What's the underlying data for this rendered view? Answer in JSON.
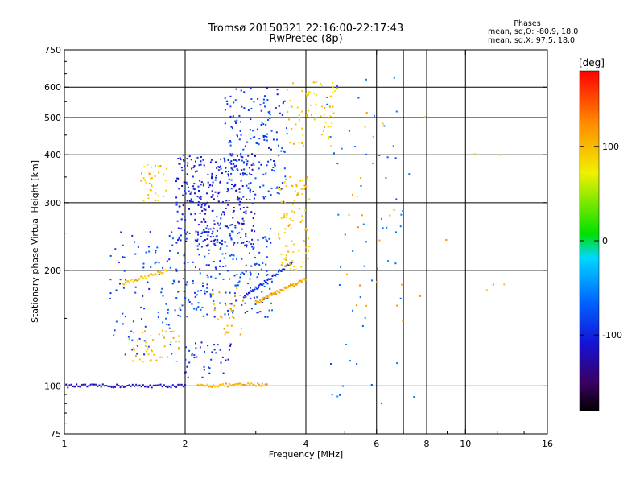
{
  "chart_data": {
    "type": "scatter",
    "title": "Tromsø 20150321 22:16:00-22:17:43",
    "subtitle": "RwPretec (8p)",
    "xlabel": "Frequency [MHz]",
    "ylabel": "Stationary phase Virtual Height [km]",
    "x_scale": "log",
    "y_scale": "log",
    "xlim": [
      1,
      16
    ],
    "ylim": [
      75,
      750
    ],
    "x_ticks": [
      "1",
      "2",
      "4",
      "6",
      "8",
      "10",
      "16"
    ],
    "x_tick_values": [
      1,
      2,
      4,
      6,
      8,
      10,
      16
    ],
    "x_grid": [
      2,
      4,
      6,
      7,
      8,
      10
    ],
    "y_ticks": [
      "75",
      "100",
      "200",
      "300",
      "400",
      "500",
      "600",
      "750"
    ],
    "y_tick_values": [
      75,
      100,
      200,
      300,
      400,
      500,
      600,
      750
    ],
    "grid": true,
    "colorbar": {
      "label": "[deg]",
      "ticks": [
        "100",
        "0",
        "-100"
      ],
      "tick_values": [
        100,
        0,
        -100
      ],
      "range": [
        -180,
        180
      ]
    },
    "stats": {
      "heading": "Phases",
      "line1": "mean, sd,O: -80.9, 18.0",
      "line2": "mean, sd,X:  97.5, 18.0"
    },
    "clusters": [
      {
        "x": [
          1.0,
          2.0
        ],
        "y": [
          100,
          100
        ],
        "phase": -115,
        "kind": "line",
        "n": 70
      },
      {
        "x": [
          2.15,
          3.2
        ],
        "y": [
          100,
          101
        ],
        "phase": 105,
        "kind": "line",
        "n": 45
      },
      {
        "x": [
          1.4,
          1.8
        ],
        "y": [
          185,
          200
        ],
        "phase": 100,
        "kind": "line",
        "n": 35
      },
      {
        "x": [
          1.55,
          1.8
        ],
        "y": [
          300,
          380
        ],
        "phase": 95,
        "kind": "blob",
        "n": 35
      },
      {
        "x": [
          1.45,
          1.95
        ],
        "y": [
          115,
          140
        ],
        "phase": 100,
        "kind": "blob",
        "n": 45
      },
      {
        "x": [
          1.3,
          1.9
        ],
        "y": [
          120,
          260
        ],
        "phase": -80,
        "kind": "blob",
        "n": 90
      },
      {
        "x": [
          1.9,
          3.0
        ],
        "y": [
          230,
          400
        ],
        "phase": -105,
        "kind": "blob",
        "n": 320
      },
      {
        "x": [
          1.9,
          3.3
        ],
        "y": [
          150,
          260
        ],
        "phase": -80,
        "kind": "blob",
        "n": 220
      },
      {
        "x": [
          2.5,
          3.6
        ],
        "y": [
          300,
          600
        ],
        "phase": -85,
        "kind": "blob",
        "n": 170
      },
      {
        "x": [
          2.8,
          3.7
        ],
        "y": [
          170,
          210
        ],
        "phase": -95,
        "kind": "line",
        "n": 50
      },
      {
        "x": [
          3.0,
          4.0
        ],
        "y": [
          165,
          190
        ],
        "phase": 105,
        "kind": "line",
        "n": 60
      },
      {
        "x": [
          3.4,
          4.1
        ],
        "y": [
          200,
          350
        ],
        "phase": 95,
        "kind": "blob",
        "n": 90
      },
      {
        "x": [
          3.6,
          4.8
        ],
        "y": [
          420,
          620
        ],
        "phase": 90,
        "kind": "blob",
        "n": 70
      },
      {
        "x": [
          2.3,
          2.8
        ],
        "y": [
          135,
          180
        ],
        "phase": 105,
        "kind": "blob",
        "n": 30
      },
      {
        "x": [
          2.0,
          2.6
        ],
        "y": [
          105,
          130
        ],
        "phase": -100,
        "kind": "blob",
        "n": 40
      },
      {
        "x": [
          4.5,
          7.5
        ],
        "y": [
          90,
          650
        ],
        "phase": -60,
        "kind": "scatter",
        "n": 60
      },
      {
        "x": [
          5.0,
          12.5
        ],
        "y": [
          140,
          520
        ],
        "phase": 110,
        "kind": "scatter",
        "n": 30
      }
    ]
  }
}
